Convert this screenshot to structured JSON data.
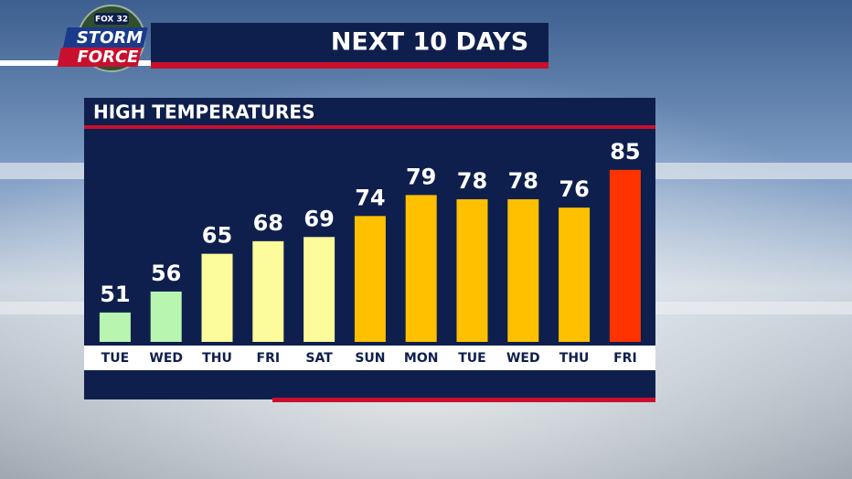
{
  "logo": {
    "network": "FOX 32",
    "line1": "STORM",
    "line2": "FORCE"
  },
  "chart_data": {
    "type": "bar",
    "title": "NEXT 10 DAYS",
    "subtitle": "HIGH TEMPERATURES",
    "categories": [
      "TUE",
      "WED",
      "THU",
      "FRI",
      "SAT",
      "SUN",
      "MON",
      "TUE",
      "WED",
      "THU",
      "FRI"
    ],
    "values": [
      51,
      56,
      65,
      68,
      69,
      74,
      79,
      78,
      78,
      76,
      85
    ],
    "colors": [
      "#b8f5b0",
      "#b8f5b0",
      "#fbfb9c",
      "#fbfb9c",
      "#fbfb9c",
      "#ffc000",
      "#ffc000",
      "#ffc000",
      "#ffc000",
      "#ffc000",
      "#ff3300"
    ],
    "ylim": [
      44,
      100
    ]
  }
}
